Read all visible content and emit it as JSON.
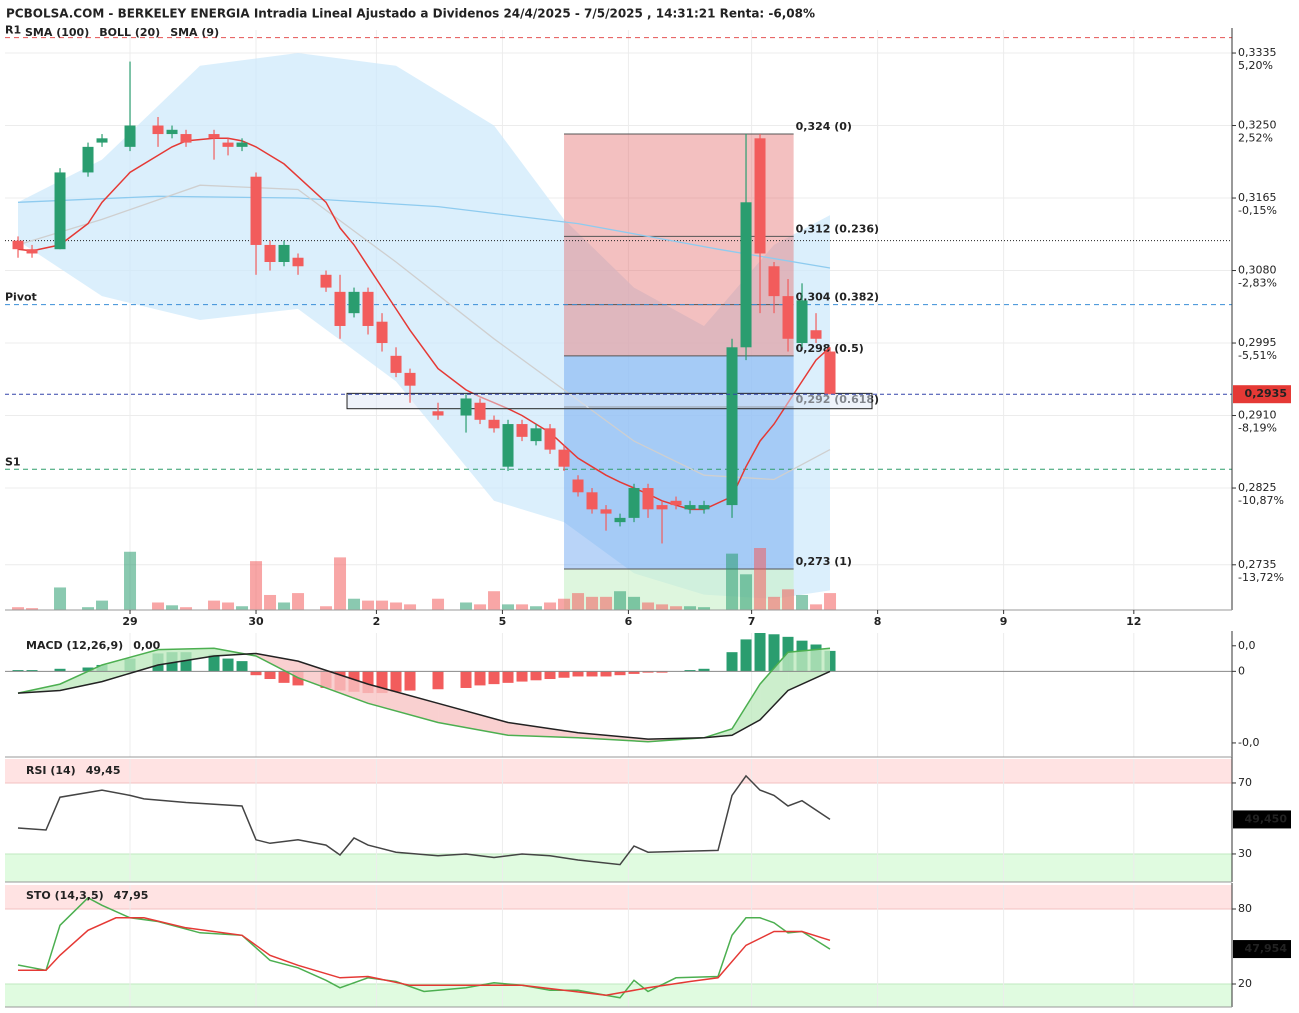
{
  "chart_data": [
    {
      "type": "candlestick",
      "title": "PCBOLSA.COM - BERKELEY ENERGIA Intradia Lineal Ajustado a Dividenos 24/4/2025 - 7/5/2025 , 14:31:21 Renta: -6,08%",
      "x": [
        0,
        1,
        3,
        5,
        6,
        8,
        10,
        11,
        12,
        14,
        15,
        16,
        17,
        18,
        19,
        20,
        22,
        23,
        24,
        25,
        26,
        27,
        28,
        30,
        32,
        33,
        34,
        35,
        36,
        37,
        38,
        39,
        40,
        41,
        42,
        43,
        44,
        45,
        46,
        47,
        48,
        49,
        51,
        52,
        53,
        54,
        55,
        56,
        57,
        58
      ],
      "open": [
        0.3115,
        0.3105,
        0.3105,
        0.3195,
        0.323,
        0.3225,
        0.325,
        0.324,
        0.324,
        0.324,
        0.323,
        0.3225,
        0.319,
        0.311,
        0.309,
        0.3095,
        0.3075,
        0.3055,
        0.303,
        0.3055,
        0.302,
        0.298,
        0.296,
        0.2915,
        0.291,
        0.2925,
        0.2905,
        0.285,
        0.29,
        0.288,
        0.2895,
        0.287,
        0.2835,
        0.282,
        0.28,
        0.2785,
        0.279,
        0.2825,
        0.2805,
        0.281,
        0.28,
        0.28,
        0.2805,
        0.299,
        0.3235,
        0.3085,
        0.305,
        0.2995,
        0.301,
        0.2985
      ],
      "high": [
        0.312,
        0.311,
        0.32,
        0.323,
        0.324,
        0.3325,
        0.326,
        0.325,
        0.3245,
        0.3245,
        0.3235,
        0.3235,
        0.3195,
        0.3115,
        0.3115,
        0.31,
        0.308,
        0.3075,
        0.306,
        0.306,
        0.303,
        0.299,
        0.2965,
        0.2925,
        0.2935,
        0.293,
        0.291,
        0.2905,
        0.2905,
        0.29,
        0.29,
        0.2875,
        0.284,
        0.2825,
        0.2805,
        0.2795,
        0.283,
        0.283,
        0.281,
        0.2815,
        0.281,
        0.281,
        0.3,
        0.324,
        0.324,
        0.309,
        0.307,
        0.3065,
        0.303,
        0.299
      ],
      "low": [
        0.3095,
        0.3095,
        0.3105,
        0.319,
        0.3225,
        0.322,
        0.3225,
        0.3235,
        0.3225,
        0.321,
        0.3215,
        0.322,
        0.3075,
        0.308,
        0.3085,
        0.3075,
        0.3055,
        0.3,
        0.3025,
        0.3005,
        0.2985,
        0.2955,
        0.2925,
        0.2905,
        0.289,
        0.29,
        0.289,
        0.2845,
        0.288,
        0.2875,
        0.2865,
        0.2845,
        0.2815,
        0.2795,
        0.2775,
        0.278,
        0.2785,
        0.279,
        0.276,
        0.28,
        0.2795,
        0.2795,
        0.279,
        0.2975,
        0.303,
        0.303,
        0.2985,
        0.299,
        0.2995,
        0.2935
      ],
      "close": [
        0.3105,
        0.31,
        0.3195,
        0.3225,
        0.3235,
        0.325,
        0.324,
        0.3245,
        0.323,
        0.3235,
        0.3225,
        0.323,
        0.311,
        0.309,
        0.311,
        0.3085,
        0.306,
        0.3015,
        0.3055,
        0.3015,
        0.2995,
        0.296,
        0.2945,
        0.291,
        0.293,
        0.2905,
        0.2895,
        0.29,
        0.2885,
        0.2895,
        0.287,
        0.285,
        0.282,
        0.28,
        0.2795,
        0.279,
        0.2825,
        0.28,
        0.28,
        0.2805,
        0.2805,
        0.2805,
        0.299,
        0.316,
        0.31,
        0.305,
        0.3,
        0.3045,
        0.3,
        0.2935
      ],
      "volume": [
        3,
        2,
        24,
        3,
        10,
        62,
        8,
        5,
        3,
        10,
        8,
        4,
        52,
        16,
        8,
        18,
        4,
        56,
        12,
        10,
        10,
        8,
        6,
        12,
        8,
        6,
        20,
        6,
        6,
        4,
        8,
        12,
        18,
        14,
        14,
        20,
        14,
        8,
        6,
        4,
        4,
        3,
        60,
        38,
        66,
        14,
        22,
        16,
        6,
        18
      ],
      "up_color": "#2a9d6f",
      "down_color": "#f25c5c",
      "overlays": [
        {
          "name": "SMA (100)",
          "color": "#8ecbef",
          "x": [
            0,
            10,
            20,
            30,
            40,
            50,
            58
          ],
          "values": [
            0.316,
            0.3167,
            0.3165,
            0.3155,
            0.3135,
            0.3105,
            0.3083
          ]
        },
        {
          "name": "BOLL (20)",
          "color": "#cfcfcf",
          "x": [
            0,
            6,
            13,
            20,
            27,
            34,
            39,
            44,
            49,
            54,
            58
          ],
          "values": [
            0.311,
            0.314,
            0.318,
            0.3175,
            0.309,
            0.3,
            0.294,
            0.288,
            0.284,
            0.2835,
            0.287
          ],
          "upper": [
            0.316,
            0.321,
            0.332,
            0.3335,
            0.332,
            0.325,
            0.314,
            0.306,
            0.3015,
            0.311,
            0.3145
          ],
          "lower": [
            0.3115,
            0.305,
            0.3022,
            0.3035,
            0.295,
            0.281,
            0.2785,
            0.2725,
            0.27,
            0.2695,
            0.2705
          ],
          "band_color": "#cfe9fb"
        },
        {
          "name": "SMA (9)",
          "color": "#e53935",
          "x": [
            0,
            1,
            3,
            5,
            6,
            8,
            10,
            11,
            12,
            14,
            15,
            16,
            17,
            18,
            19,
            20,
            22,
            23,
            24,
            25,
            26,
            27,
            28,
            30,
            32,
            33,
            34,
            35,
            36,
            37,
            38,
            39,
            40,
            41,
            42,
            43,
            44,
            45,
            46,
            47,
            48,
            49,
            51,
            52,
            53,
            54,
            55,
            56,
            57,
            58
          ],
          "values": [
            0.3105,
            0.3103,
            0.311,
            0.3135,
            0.316,
            0.3195,
            0.3215,
            0.3225,
            0.3232,
            0.3235,
            0.3235,
            0.3232,
            0.3225,
            0.3215,
            0.3205,
            0.319,
            0.316,
            0.313,
            0.311,
            0.3085,
            0.306,
            0.3035,
            0.301,
            0.2965,
            0.294,
            0.2932,
            0.2925,
            0.2918,
            0.291,
            0.29,
            0.289,
            0.2875,
            0.286,
            0.285,
            0.284,
            0.2832,
            0.2825,
            0.2818,
            0.281,
            0.2805,
            0.28,
            0.28,
            0.2815,
            0.285,
            0.288,
            0.29,
            0.2925,
            0.295,
            0.2975,
            0.299
          ]
        }
      ],
      "levels": [
        {
          "name": "R1",
          "value": 0.3353,
          "color": "#e55353"
        },
        {
          "name": "Pivot",
          "value": 0.304,
          "color": "#3a8fd8"
        },
        {
          "name": "S1",
          "value": 0.2847,
          "color": "#2f9e6a"
        }
      ],
      "dotted_level": 0.3115,
      "last": {
        "value": 0.2935,
        "label": "0,2935",
        "color": "#e53935",
        "line_color": "#3344aa"
      },
      "box": {
        "x": [
          23.5,
          61
        ],
        "y": [
          0.2918,
          0.2936
        ]
      },
      "fib": {
        "x": [
          39,
          55.4
        ],
        "top_color": "#e57373",
        "bottom_color": "#64a0f0",
        "levels": [
          {
            "value": 0.324,
            "label": "0,324 (0)",
            "color": "#f08a8a"
          },
          {
            "value": 0.312,
            "label": "0,312 (0.236)",
            "color": "#f06a6a"
          },
          {
            "value": 0.304,
            "label": "0,304 (0.382)",
            "color": "#f4a0a0"
          },
          {
            "value": 0.298,
            "label": "0,298 (0.5)",
            "color": "#5a8fd8"
          },
          {
            "value": 0.292,
            "label": "0,292 (0.618)",
            "color": "#5a8fd8"
          },
          {
            "value": 0.273,
            "label": "0,273 (1)",
            "color": "#5cbf5c"
          }
        ]
      },
      "xlim": [
        -0.93,
        86.57
      ],
      "xticks": [
        {
          "value": 8,
          "label": "29"
        },
        {
          "value": 17,
          "label": "30"
        },
        {
          "value": 25.6,
          "label": "2"
        },
        {
          "value": 34.6,
          "label": "5"
        },
        {
          "value": 43.6,
          "label": "6"
        },
        {
          "value": 52.4,
          "label": "7"
        },
        {
          "value": 61.4,
          "label": "8"
        },
        {
          "value": 70.4,
          "label": "9"
        },
        {
          "value": 79.7,
          "label": "12"
        }
      ],
      "ylim": [
        0.2682,
        0.3362
      ],
      "yticks": [
        {
          "value": 0.3335,
          "label": "0,3335"
        },
        {
          "value": 0.325,
          "label": "0,3250"
        },
        {
          "value": 0.3165,
          "label": "0,3165"
        },
        {
          "value": 0.308,
          "label": "0,3080"
        },
        {
          "value": 0.2995,
          "label": "0,2995"
        },
        {
          "value": 0.291,
          "label": "0,2910"
        },
        {
          "value": 0.2825,
          "label": "0,2825"
        },
        {
          "value": 0.2735,
          "label": "0,2735"
        }
      ],
      "ytick_pct": [
        "5,20%",
        "2,52%",
        "-0,15%",
        "-2,83%",
        "-5,51%",
        "-8,19%",
        "-10,87%",
        "-13,72%"
      ],
      "ytick_pct_colors": [
        "#2f9e6a",
        "#2f9e6a",
        "#e55353",
        "#e55353",
        "#e55353",
        "#e55353",
        "#e55353",
        "#e55353"
      ],
      "grid": true
    },
    {
      "type": "macd",
      "name": "MACD (12,26,9)",
      "readout": "0,00",
      "x": [
        0,
        1,
        3,
        5,
        6,
        8,
        10,
        11,
        12,
        14,
        15,
        16,
        17,
        18,
        19,
        20,
        22,
        23,
        24,
        25,
        26,
        27,
        28,
        30,
        32,
        33,
        34,
        35,
        36,
        37,
        38,
        39,
        40,
        41,
        42,
        43,
        44,
        45,
        46,
        47,
        48,
        49,
        51,
        52,
        53,
        54,
        55,
        56,
        57,
        58
      ],
      "histogram": [
        0.0001,
        0.0001,
        0.0002,
        0.0003,
        0.0005,
        0.001,
        0.0014,
        0.0015,
        0.0015,
        0.0013,
        0.001,
        0.0008,
        -0.0003,
        -0.0006,
        -0.0009,
        -0.0011,
        -0.0013,
        -0.0015,
        -0.0016,
        -0.0017,
        -0.0017,
        -0.0016,
        -0.0015,
        -0.0014,
        -0.0013,
        -0.0011,
        -0.001,
        -0.0009,
        -0.0008,
        -0.0007,
        -0.0006,
        -0.0005,
        -0.0004,
        -0.0004,
        -0.0004,
        -0.0003,
        -0.0002,
        -0.0001,
        -0.0001,
        0,
        0.0001,
        0.0002,
        0.0015,
        0.0025,
        0.003,
        0.0029,
        0.0027,
        0.0024,
        0.0021,
        0.0016
      ],
      "line_x": [
        0,
        3,
        6,
        10,
        14,
        17,
        20,
        25,
        30,
        35,
        40,
        45,
        49,
        51,
        53,
        55,
        58
      ],
      "macd": [
        -0.0017,
        -0.001,
        0.0005,
        0.0017,
        0.0018,
        0.0012,
        -0.0005,
        -0.0025,
        -0.004,
        -0.005,
        -0.0052,
        -0.0055,
        -0.0052,
        -0.0045,
        -0.001,
        0.0015,
        0.0018
      ],
      "signal": [
        -0.0017,
        -0.0015,
        -0.0008,
        0.0005,
        0.0012,
        0.0014,
        0.0008,
        -0.001,
        -0.0025,
        -0.004,
        -0.0048,
        -0.0053,
        -0.0052,
        -0.005,
        -0.0038,
        -0.0015,
        0
      ],
      "macd_color": "#4caf50",
      "signal_color": "#222222",
      "up_color": "#2a9d6f",
      "down_color": "#f25c5c",
      "ylim": [
        -0.0067,
        0.003
      ],
      "yticks": [
        {
          "value": 0.002,
          "label": "0,0"
        },
        0,
        {
          "value": -0.0056,
          "label": "-0,0"
        }
      ],
      "ytick_colors": [
        "#e53935",
        "#222222",
        "#2f9e6a"
      ]
    },
    {
      "type": "line",
      "name": "RSI (14)",
      "readout": "49,45",
      "tag": "49,450",
      "x": [
        0,
        2,
        3,
        6,
        8,
        9,
        12,
        16,
        17,
        18,
        20,
        22,
        23,
        24,
        25,
        27,
        30,
        32,
        34,
        36,
        38,
        40,
        43,
        44,
        45,
        50,
        51,
        52,
        53,
        54,
        55,
        56,
        58
      ],
      "values": [
        44.6,
        43.5,
        62,
        66,
        63,
        61,
        59,
        57,
        38,
        36,
        38,
        35,
        29.4,
        39,
        35,
        31,
        29,
        30,
        28,
        30,
        29,
        26.6,
        24,
        34.5,
        31,
        32,
        63,
        74,
        66,
        63,
        57,
        60,
        49.45
      ],
      "color": "#444444",
      "upper_zone": 70,
      "lower_zone": 30,
      "upper_color": "#ffe3e3",
      "lower_color": "#e0fbe0",
      "ylim": [
        14.2,
        83.5
      ],
      "yticks": [
        70,
        30
      ]
    },
    {
      "type": "stochastic",
      "name": "STO (14,3,5)",
      "readout": "47,95",
      "tag": "47,954",
      "series": [
        {
          "color": "#4caf50",
          "x": [
            0,
            2,
            3,
            5,
            6,
            8,
            10,
            13,
            16,
            18,
            20,
            22,
            23,
            25,
            27,
            29,
            32,
            34,
            36,
            38,
            40,
            43,
            44,
            45,
            47,
            50,
            51,
            52,
            53,
            54,
            55,
            56,
            58
          ],
          "values": [
            35.2,
            31,
            67,
            89,
            83,
            73,
            70,
            61,
            59,
            39,
            33,
            23,
            17,
            25,
            22,
            14,
            17,
            21,
            19,
            15,
            15,
            9,
            23,
            14,
            25,
            26,
            59,
            73,
            73,
            69,
            61,
            62,
            47.954
          ]
        },
        {
          "color": "#e53935",
          "x": [
            0,
            2,
            3,
            5,
            7,
            9,
            12,
            16,
            18,
            20,
            23,
            25,
            28,
            32,
            36,
            39,
            42,
            45,
            48,
            50,
            52,
            54,
            56,
            58
          ],
          "values": [
            31,
            31,
            43,
            63,
            73,
            73,
            65,
            59,
            43,
            35,
            25,
            26,
            19,
            19,
            19,
            15,
            11,
            17,
            22,
            25,
            51,
            62,
            62,
            55
          ]
        }
      ],
      "upper_zone": 80,
      "lower_zone": 20,
      "upper_color": "#ffe3e3",
      "lower_color": "#e0fbe0",
      "ylim": [
        1.6,
        99.2
      ],
      "yticks": [
        80,
        20
      ]
    }
  ]
}
